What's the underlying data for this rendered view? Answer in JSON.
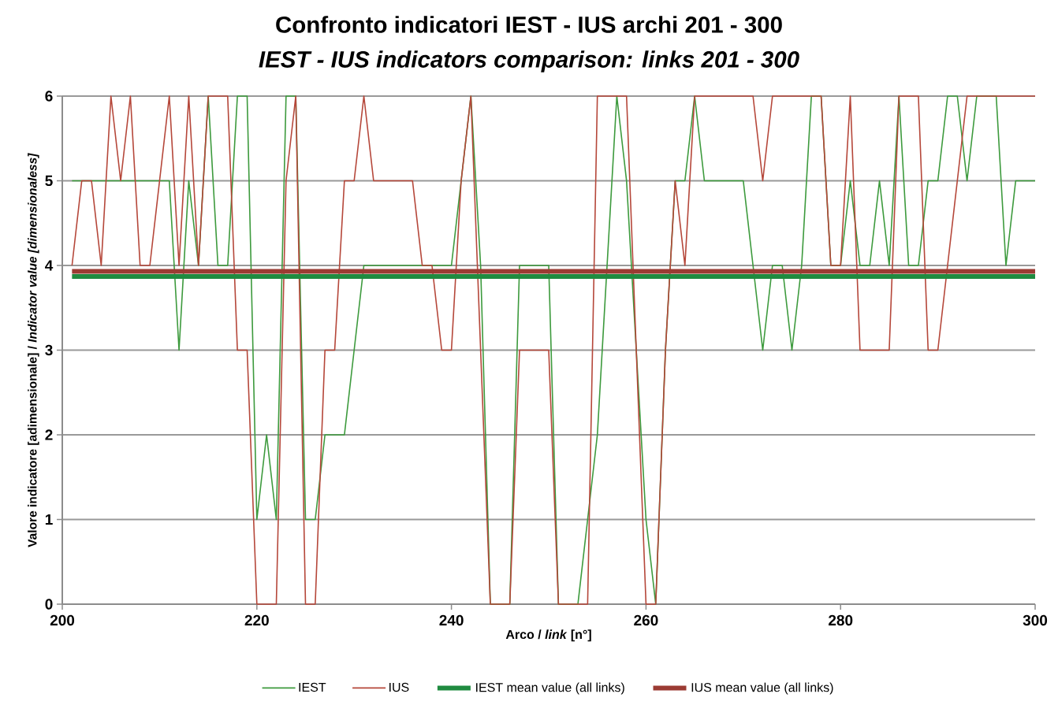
{
  "chart_data": {
    "type": "line",
    "title": "Confronto indicatori IEST - IUS archi 201 - 300",
    "subtitle": "IEST - IUS indicators comparison: links 201 - 300",
    "xlabel": "Arco / *link* [n°]",
    "ylabel": "Valore indicatore [adimensionale] / *Indicator value [dimensionaless]*",
    "x": [
      201,
      202,
      203,
      204,
      205,
      206,
      207,
      208,
      209,
      210,
      211,
      212,
      213,
      214,
      215,
      216,
      217,
      218,
      219,
      220,
      221,
      222,
      223,
      224,
      225,
      226,
      227,
      228,
      229,
      230,
      231,
      232,
      233,
      234,
      235,
      236,
      237,
      238,
      239,
      240,
      241,
      242,
      243,
      244,
      245,
      246,
      247,
      248,
      249,
      250,
      251,
      252,
      253,
      254,
      255,
      256,
      257,
      258,
      259,
      260,
      261,
      262,
      263,
      264,
      265,
      266,
      267,
      268,
      269,
      270,
      271,
      272,
      273,
      274,
      275,
      276,
      277,
      278,
      279,
      280,
      281,
      282,
      283,
      284,
      285,
      286,
      287,
      288,
      289,
      290,
      291,
      292,
      293,
      294,
      295,
      296,
      297,
      298,
      299,
      300
    ],
    "series": [
      {
        "name": "IEST",
        "color": "#3d9a3d",
        "values": [
          5,
          5,
          5,
          5,
          5,
          5,
          5,
          5,
          5,
          5,
          5,
          3,
          5,
          4,
          6,
          4,
          4,
          6,
          6,
          1,
          2,
          1,
          6,
          6,
          1,
          1,
          2,
          2,
          2,
          3,
          4,
          4,
          4,
          4,
          4,
          4,
          4,
          4,
          4,
          4,
          5,
          6,
          4,
          0,
          0,
          0,
          4,
          4,
          4,
          4,
          0,
          0,
          0,
          1,
          2,
          4,
          6,
          5,
          3,
          1,
          0,
          3,
          5,
          5,
          6,
          5,
          5,
          5,
          5,
          5,
          4,
          3,
          4,
          4,
          3,
          4,
          6,
          6,
          4,
          4,
          5,
          4,
          4,
          5,
          4,
          6,
          4,
          4,
          5,
          5,
          6,
          6,
          5,
          6,
          6,
          6,
          4,
          5,
          5,
          5
        ]
      },
      {
        "name": "IUS",
        "color": "#b5473a",
        "values": [
          4,
          5,
          5,
          4,
          6,
          5,
          6,
          4,
          4,
          5,
          6,
          4,
          6,
          4,
          6,
          6,
          6,
          3,
          3,
          0,
          0,
          0,
          5,
          6,
          0,
          0,
          3,
          3,
          5,
          5,
          6,
          5,
          5,
          5,
          5,
          5,
          4,
          4,
          3,
          3,
          5,
          6,
          3,
          0,
          0,
          0,
          3,
          3,
          3,
          3,
          0,
          0,
          0,
          0,
          6,
          6,
          6,
          6,
          3,
          0,
          0,
          3,
          5,
          4,
          6,
          6,
          6,
          6,
          6,
          6,
          6,
          5,
          6,
          6,
          6,
          6,
          6,
          6,
          4,
          4,
          6,
          3,
          3,
          3,
          3,
          6,
          6,
          6,
          3,
          3,
          4,
          5,
          6,
          6,
          6,
          6,
          6,
          6,
          6,
          6
        ]
      }
    ],
    "ref_lines": [
      {
        "axis": "y",
        "value": 3.87,
        "label": "IEST mean value (all links)",
        "color": "#1f8b40"
      },
      {
        "axis": "y",
        "value": 3.93,
        "label": "IUS mean value (all links)",
        "color": "#9b3b33"
      }
    ],
    "xlim": [
      200,
      300
    ],
    "xticks": [
      200,
      220,
      240,
      260,
      280,
      300
    ],
    "ylim": [
      0,
      6
    ],
    "yticks": [
      0,
      1,
      2,
      3,
      4,
      5,
      6
    ],
    "grid": "y",
    "legend": "bottom"
  }
}
